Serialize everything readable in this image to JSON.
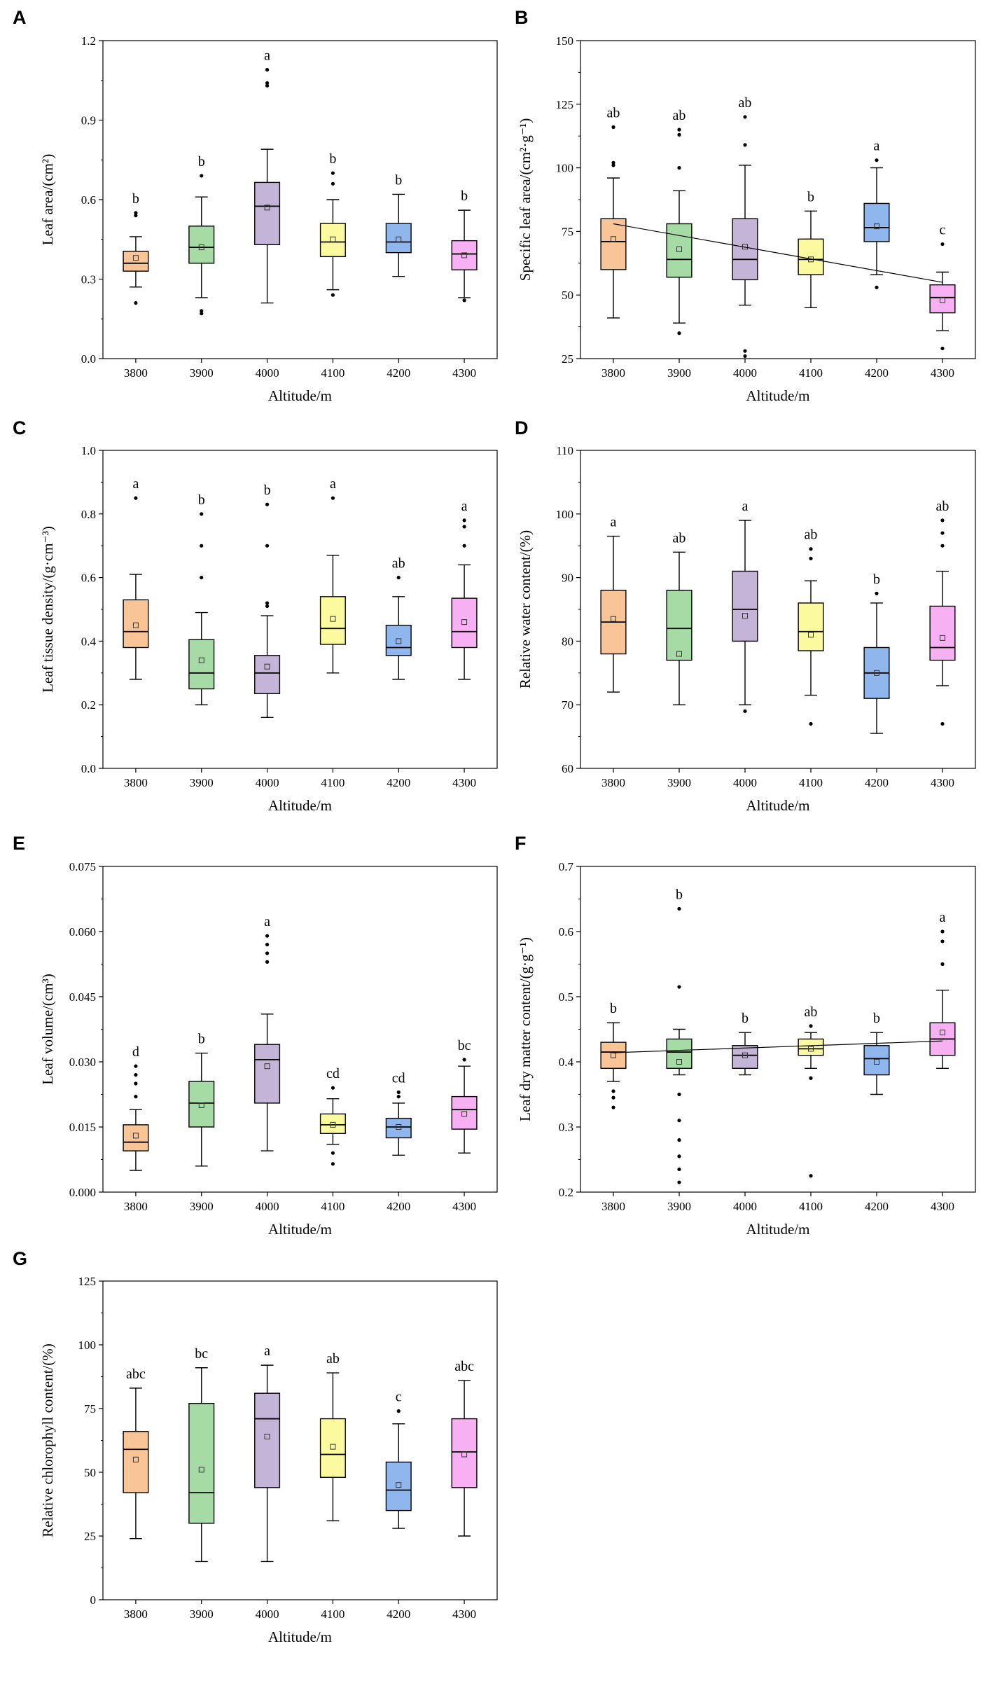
{
  "colors": {
    "c3800": "#f9c597",
    "c3900": "#a6dba6",
    "c4000": "#c4b4d8",
    "c4100": "#fbfa9f",
    "c4200": "#8fb6ed",
    "c4300": "#f7b0f1"
  },
  "chart_data": [
    {
      "letter": "A",
      "type": "box",
      "title": "",
      "xlabel": "Altitude/m",
      "ylabel": "Leaf area/(cm²)",
      "categories": [
        "3800",
        "3900",
        "4000",
        "4100",
        "4200",
        "4300"
      ],
      "ylim": [
        0,
        1.2
      ],
      "yticks": [
        "0.0",
        "0.3",
        "0.6",
        "0.9",
        "1.2"
      ],
      "boxes": [
        {
          "q1": 0.33,
          "median": 0.36,
          "q3": 0.405,
          "mean": 0.38,
          "whisker_low": 0.27,
          "whisker_high": 0.46,
          "outliers": [
            0.21,
            0.54,
            0.55
          ],
          "sig": "b"
        },
        {
          "q1": 0.36,
          "median": 0.42,
          "q3": 0.5,
          "mean": 0.42,
          "whisker_low": 0.23,
          "whisker_high": 0.61,
          "outliers": [
            0.17,
            0.18,
            0.69
          ],
          "sig": "b"
        },
        {
          "q1": 0.43,
          "median": 0.575,
          "q3": 0.665,
          "mean": 0.57,
          "whisker_low": 0.21,
          "whisker_high": 0.79,
          "outliers": [
            1.03,
            1.04,
            1.09
          ],
          "sig": "a"
        },
        {
          "q1": 0.385,
          "median": 0.44,
          "q3": 0.51,
          "mean": 0.45,
          "whisker_low": 0.26,
          "whisker_high": 0.6,
          "outliers": [
            0.24,
            0.66,
            0.7
          ],
          "sig": "b"
        },
        {
          "q1": 0.4,
          "median": 0.44,
          "q3": 0.51,
          "mean": 0.45,
          "whisker_low": 0.31,
          "whisker_high": 0.62,
          "outliers": [],
          "sig": "b"
        },
        {
          "q1": 0.335,
          "median": 0.395,
          "q3": 0.445,
          "mean": 0.39,
          "whisker_low": 0.23,
          "whisker_high": 0.56,
          "outliers": [
            0.22
          ],
          "sig": "b"
        }
      ]
    },
    {
      "letter": "B",
      "type": "box",
      "title": "",
      "xlabel": "Altitude/m",
      "ylabel": "Specific leaf area/(cm²·g⁻¹)",
      "categories": [
        "3800",
        "3900",
        "4000",
        "4100",
        "4200",
        "4300"
      ],
      "ylim": [
        25,
        150
      ],
      "yticks": [
        "25",
        "50",
        "75",
        "100",
        "125",
        "150"
      ],
      "trendline": [
        78,
        55
      ],
      "boxes": [
        {
          "q1": 60,
          "median": 71,
          "q3": 80,
          "mean": 72,
          "whisker_low": 41,
          "whisker_high": 96,
          "outliers": [
            101,
            102,
            116
          ],
          "sig": "ab"
        },
        {
          "q1": 57,
          "median": 64,
          "q3": 78,
          "mean": 68,
          "whisker_low": 39,
          "whisker_high": 91,
          "outliers": [
            35,
            100,
            113,
            115
          ],
          "sig": "ab"
        },
        {
          "q1": 56,
          "median": 64,
          "q3": 80,
          "mean": 69,
          "whisker_low": 46,
          "whisker_high": 101,
          "outliers": [
            26,
            28,
            109,
            120
          ],
          "sig": "ab"
        },
        {
          "q1": 58,
          "median": 64,
          "q3": 72,
          "mean": 64,
          "whisker_low": 45,
          "whisker_high": 83,
          "outliers": [],
          "sig": "b"
        },
        {
          "q1": 71,
          "median": 76.5,
          "q3": 86,
          "mean": 77,
          "whisker_low": 58,
          "whisker_high": 100,
          "outliers": [
            53,
            103
          ],
          "sig": "a"
        },
        {
          "q1": 43,
          "median": 49,
          "q3": 54,
          "mean": 48,
          "whisker_low": 36,
          "whisker_high": 59,
          "outliers": [
            29,
            70
          ],
          "sig": "c"
        }
      ]
    },
    {
      "letter": "C",
      "type": "box",
      "title": "",
      "xlabel": "Altitude/m",
      "ylabel": "Leaf tissue density/(g·cm⁻³)",
      "categories": [
        "3800",
        "3900",
        "4000",
        "4100",
        "4200",
        "4300"
      ],
      "ylim": [
        0,
        1
      ],
      "yticks": [
        "0.0",
        "0.2",
        "0.4",
        "0.6",
        "0.8",
        "1.0"
      ],
      "boxes": [
        {
          "q1": 0.38,
          "median": 0.43,
          "q3": 0.53,
          "mean": 0.45,
          "whisker_low": 0.28,
          "whisker_high": 0.61,
          "outliers": [
            0.85
          ],
          "sig": "a"
        },
        {
          "q1": 0.25,
          "median": 0.3,
          "q3": 0.405,
          "mean": 0.34,
          "whisker_low": 0.2,
          "whisker_high": 0.49,
          "outliers": [
            0.6,
            0.7,
            0.8
          ],
          "sig": "b"
        },
        {
          "q1": 0.235,
          "median": 0.3,
          "q3": 0.355,
          "mean": 0.32,
          "whisker_low": 0.16,
          "whisker_high": 0.48,
          "outliers": [
            0.51,
            0.52,
            0.7,
            0.83
          ],
          "sig": "b"
        },
        {
          "q1": 0.39,
          "median": 0.44,
          "q3": 0.54,
          "mean": 0.47,
          "whisker_low": 0.3,
          "whisker_high": 0.67,
          "outliers": [
            0.85
          ],
          "sig": "a"
        },
        {
          "q1": 0.355,
          "median": 0.38,
          "q3": 0.45,
          "mean": 0.4,
          "whisker_low": 0.28,
          "whisker_high": 0.54,
          "outliers": [
            0.6
          ],
          "sig": "ab"
        },
        {
          "q1": 0.38,
          "median": 0.43,
          "q3": 0.535,
          "mean": 0.46,
          "whisker_low": 0.28,
          "whisker_high": 0.64,
          "outliers": [
            0.7,
            0.76,
            0.78
          ],
          "sig": "a"
        }
      ]
    },
    {
      "letter": "D",
      "type": "box",
      "title": "",
      "xlabel": "Altitude/m",
      "ylabel": "Relative water content/(%)",
      "categories": [
        "3800",
        "3900",
        "4000",
        "4100",
        "4200",
        "4300"
      ],
      "ylim": [
        60,
        110
      ],
      "yticks": [
        "60",
        "70",
        "80",
        "90",
        "100",
        "110"
      ],
      "boxes": [
        {
          "q1": 78,
          "median": 83,
          "q3": 88,
          "mean": 83.5,
          "whisker_low": 72,
          "whisker_high": 96.5,
          "outliers": [],
          "sig": "a"
        },
        {
          "q1": 77,
          "median": 82,
          "q3": 88,
          "mean": 78,
          "whisker_low": 70,
          "whisker_high": 94,
          "outliers": [],
          "sig": "ab"
        },
        {
          "q1": 80,
          "median": 85,
          "q3": 91,
          "mean": 84,
          "whisker_low": 70,
          "whisker_high": 99,
          "outliers": [
            69
          ],
          "sig": "a"
        },
        {
          "q1": 78.5,
          "median": 81.5,
          "q3": 86,
          "mean": 81,
          "whisker_low": 71.5,
          "whisker_high": 89.5,
          "outliers": [
            67,
            93,
            94.5
          ],
          "sig": "ab"
        },
        {
          "q1": 71,
          "median": 75,
          "q3": 79,
          "mean": 75,
          "whisker_low": 65.5,
          "whisker_high": 86,
          "outliers": [
            87.5
          ],
          "sig": "b"
        },
        {
          "q1": 77,
          "median": 79,
          "q3": 85.5,
          "mean": 80.5,
          "whisker_low": 73,
          "whisker_high": 91,
          "outliers": [
            67,
            95,
            97,
            99
          ],
          "sig": "ab"
        }
      ]
    },
    {
      "letter": "E",
      "type": "box",
      "title": "",
      "xlabel": "Altitude/m",
      "ylabel": "Leaf volume/(cm³)",
      "categories": [
        "3800",
        "3900",
        "4000",
        "4100",
        "4200",
        "4300"
      ],
      "ylim": [
        0,
        0.075
      ],
      "yticks": [
        "0.000",
        "0.015",
        "0.030",
        "0.045",
        "0.060",
        "0.075"
      ],
      "boxes": [
        {
          "q1": 0.0095,
          "median": 0.0115,
          "q3": 0.0155,
          "mean": 0.013,
          "whisker_low": 0.005,
          "whisker_high": 0.019,
          "outliers": [
            0.022,
            0.025,
            0.027,
            0.029
          ],
          "sig": "d"
        },
        {
          "q1": 0.015,
          "median": 0.0205,
          "q3": 0.0255,
          "mean": 0.02,
          "whisker_low": 0.006,
          "whisker_high": 0.032,
          "outliers": [],
          "sig": "b"
        },
        {
          "q1": 0.0205,
          "median": 0.0305,
          "q3": 0.034,
          "mean": 0.029,
          "whisker_low": 0.0095,
          "whisker_high": 0.041,
          "outliers": [
            0.053,
            0.055,
            0.057,
            0.059
          ],
          "sig": "a"
        },
        {
          "q1": 0.0135,
          "median": 0.0155,
          "q3": 0.018,
          "mean": 0.0155,
          "whisker_low": 0.011,
          "whisker_high": 0.0215,
          "outliers": [
            0.0065,
            0.009,
            0.024
          ],
          "sig": "cd"
        },
        {
          "q1": 0.0125,
          "median": 0.015,
          "q3": 0.017,
          "mean": 0.015,
          "whisker_low": 0.0085,
          "whisker_high": 0.0205,
          "outliers": [
            0.022,
            0.023
          ],
          "sig": "cd"
        },
        {
          "q1": 0.0145,
          "median": 0.019,
          "q3": 0.022,
          "mean": 0.018,
          "whisker_low": 0.009,
          "whisker_high": 0.029,
          "outliers": [
            0.0305
          ],
          "sig": "bc"
        }
      ]
    },
    {
      "letter": "F",
      "type": "box",
      "title": "",
      "xlabel": "Altitude/m",
      "ylabel": "Leaf dry matter content/(g·g⁻¹)",
      "categories": [
        "3800",
        "3900",
        "4000",
        "4100",
        "4200",
        "4300"
      ],
      "ylim": [
        0.2,
        0.7
      ],
      "yticks": [
        "0.2",
        "0.3",
        "0.4",
        "0.5",
        "0.6",
        "0.7"
      ],
      "trendline": [
        0.414,
        0.432
      ],
      "boxes": [
        {
          "q1": 0.39,
          "median": 0.415,
          "q3": 0.43,
          "mean": 0.41,
          "whisker_low": 0.37,
          "whisker_high": 0.46,
          "outliers": [
            0.33,
            0.345,
            0.355
          ],
          "sig": "b"
        },
        {
          "q1": 0.39,
          "median": 0.415,
          "q3": 0.435,
          "mean": 0.4,
          "whisker_low": 0.38,
          "whisker_high": 0.45,
          "outliers": [
            0.215,
            0.235,
            0.255,
            0.28,
            0.31,
            0.35,
            0.515,
            0.635
          ],
          "sig": "b"
        },
        {
          "q1": 0.39,
          "median": 0.41,
          "q3": 0.425,
          "mean": 0.41,
          "whisker_low": 0.38,
          "whisker_high": 0.445,
          "outliers": [],
          "sig": "b"
        },
        {
          "q1": 0.41,
          "median": 0.42,
          "q3": 0.435,
          "mean": 0.42,
          "whisker_low": 0.39,
          "whisker_high": 0.445,
          "outliers": [
            0.225,
            0.375,
            0.455
          ],
          "sig": "ab"
        },
        {
          "q1": 0.38,
          "median": 0.405,
          "q3": 0.425,
          "mean": 0.4,
          "whisker_low": 0.35,
          "whisker_high": 0.445,
          "outliers": [],
          "sig": "b"
        },
        {
          "q1": 0.41,
          "median": 0.435,
          "q3": 0.46,
          "mean": 0.445,
          "whisker_low": 0.39,
          "whisker_high": 0.51,
          "outliers": [
            0.55,
            0.585,
            0.6
          ],
          "sig": "a"
        }
      ]
    },
    {
      "letter": "G",
      "type": "box",
      "title": "",
      "xlabel": "Altitude/m",
      "ylabel": "Relative chlorophyll content/(%)",
      "categories": [
        "3800",
        "3900",
        "4000",
        "4100",
        "4200",
        "4300"
      ],
      "ylim": [
        0,
        125
      ],
      "yticks": [
        "0",
        "25",
        "50",
        "75",
        "100",
        "125"
      ],
      "boxes": [
        {
          "q1": 42,
          "median": 59,
          "q3": 66,
          "mean": 55,
          "whisker_low": 24,
          "whisker_high": 83,
          "outliers": [],
          "sig": "abc"
        },
        {
          "q1": 30,
          "median": 42,
          "q3": 77,
          "mean": 51,
          "whisker_low": 15,
          "whisker_high": 91,
          "outliers": [],
          "sig": "bc"
        },
        {
          "q1": 44,
          "median": 71,
          "q3": 81,
          "mean": 64,
          "whisker_low": 15,
          "whisker_high": 92,
          "outliers": [],
          "sig": "a"
        },
        {
          "q1": 48,
          "median": 57,
          "q3": 71,
          "mean": 60,
          "whisker_low": 31,
          "whisker_high": 89,
          "outliers": [],
          "sig": "ab"
        },
        {
          "q1": 35,
          "median": 43,
          "q3": 54,
          "mean": 45,
          "whisker_low": 28,
          "whisker_high": 69,
          "outliers": [
            74
          ],
          "sig": "c"
        },
        {
          "q1": 44,
          "median": 58,
          "q3": 71,
          "mean": 57,
          "whisker_low": 25,
          "whisker_high": 86,
          "outliers": [],
          "sig": "abc"
        }
      ]
    }
  ]
}
